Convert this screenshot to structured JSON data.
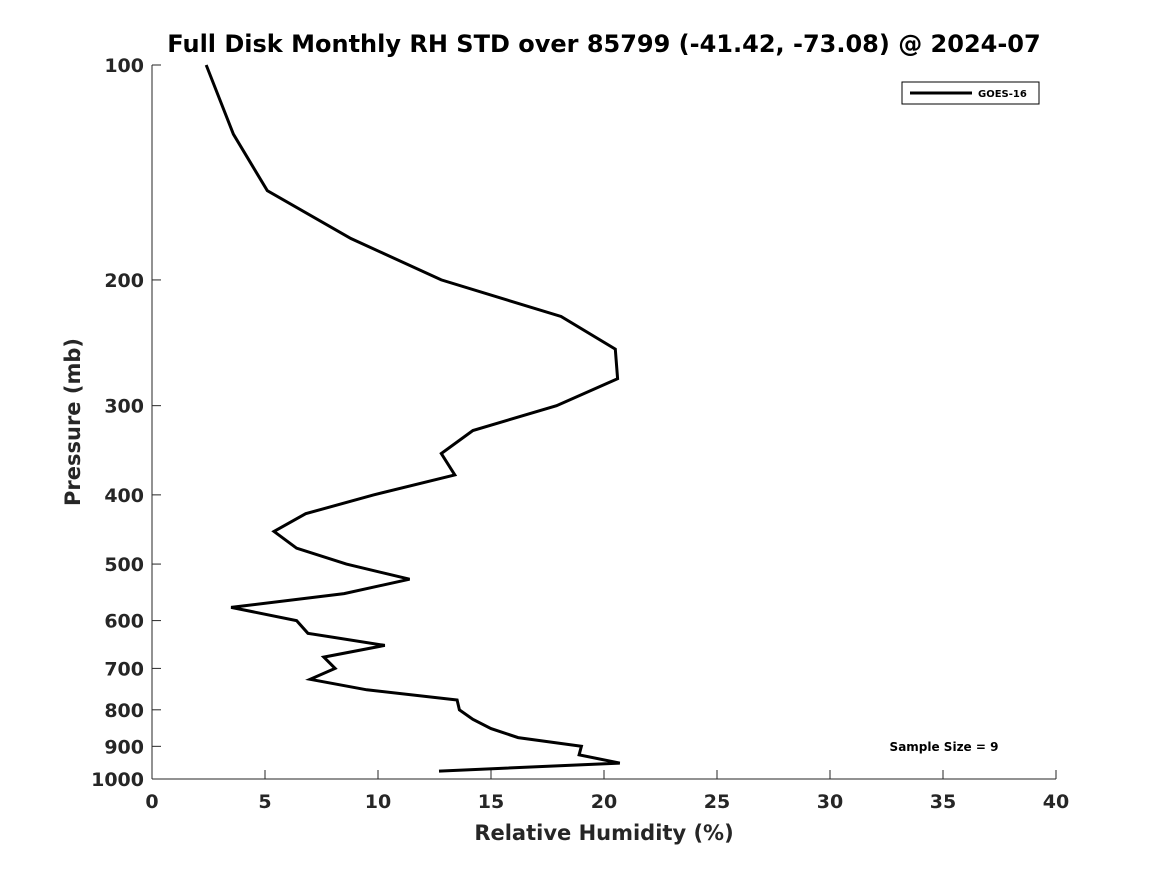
{
  "chart_data": {
    "type": "line",
    "title": "Full Disk Monthly RH STD over 85799 (-41.42, -73.08) @ 2024-07",
    "xlabel": "Relative Humidity (%)",
    "ylabel": "Pressure (mb)",
    "xlim": [
      0,
      40
    ],
    "ylim": [
      100,
      1000
    ],
    "yscale": "log",
    "yreversed": true,
    "grid": false,
    "legend_position": "top-right",
    "xticks": [
      "0",
      "5",
      "10",
      "15",
      "20",
      "25",
      "30",
      "35",
      "40"
    ],
    "yticks": [
      "100",
      "200",
      "300",
      "400",
      "500",
      "600",
      "700",
      "800",
      "900",
      "1000"
    ],
    "series": [
      {
        "name": "GOES-16",
        "color": "#000000",
        "points": [
          {
            "p": 100,
            "rh": 2.4
          },
          {
            "p": 125,
            "rh": 3.6
          },
          {
            "p": 150,
            "rh": 5.1
          },
          {
            "p": 175,
            "rh": 8.8
          },
          {
            "p": 200,
            "rh": 12.8
          },
          {
            "p": 225,
            "rh": 18.1
          },
          {
            "p": 250,
            "rh": 20.5
          },
          {
            "p": 275,
            "rh": 20.6
          },
          {
            "p": 300,
            "rh": 17.9
          },
          {
            "p": 325,
            "rh": 14.2
          },
          {
            "p": 350,
            "rh": 12.8
          },
          {
            "p": 375,
            "rh": 13.4
          },
          {
            "p": 400,
            "rh": 9.8
          },
          {
            "p": 425,
            "rh": 6.8
          },
          {
            "p": 450,
            "rh": 5.4
          },
          {
            "p": 475,
            "rh": 6.4
          },
          {
            "p": 500,
            "rh": 8.6
          },
          {
            "p": 525,
            "rh": 11.4
          },
          {
            "p": 550,
            "rh": 8.5
          },
          {
            "p": 575,
            "rh": 3.5
          },
          {
            "p": 600,
            "rh": 6.4
          },
          {
            "p": 625,
            "rh": 6.9
          },
          {
            "p": 650,
            "rh": 10.3
          },
          {
            "p": 675,
            "rh": 7.6
          },
          {
            "p": 700,
            "rh": 8.1
          },
          {
            "p": 725,
            "rh": 7.0
          },
          {
            "p": 750,
            "rh": 9.5
          },
          {
            "p": 775,
            "rh": 13.5
          },
          {
            "p": 800,
            "rh": 13.6
          },
          {
            "p": 825,
            "rh": 14.2
          },
          {
            "p": 850,
            "rh": 15.0
          },
          {
            "p": 875,
            "rh": 16.2
          },
          {
            "p": 900,
            "rh": 19.0
          },
          {
            "p": 925,
            "rh": 18.9
          },
          {
            "p": 950,
            "rh": 20.7
          },
          {
            "p": 975,
            "rh": 12.7
          }
        ]
      }
    ],
    "annotation": "Sample Size = 9"
  }
}
